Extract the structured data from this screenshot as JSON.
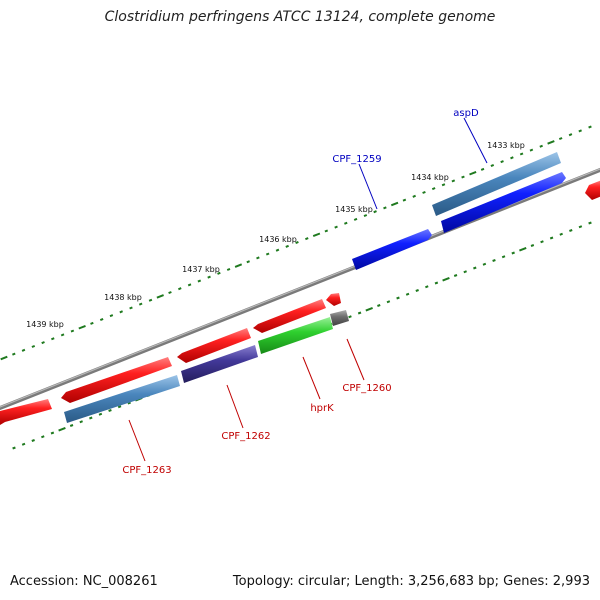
{
  "title": "Clostridium perfringens ATCC 13124, complete genome",
  "footer": {
    "accession": "Accession: NC_008261",
    "stats": "Topology: circular; Length: 3,256,683 bp; Genes: 2,993"
  },
  "colors": {
    "backbone": "#777777",
    "tick": "#1f7a1f",
    "cds_red": "#ee1c1c",
    "cds_blue": "#0a14e6",
    "cds_steel": "#4682b4",
    "cds_purple": "#3d3580",
    "cds_green": "#33c233",
    "cds_gray": "#707070",
    "label_red": "#c00000",
    "label_blue": "#0000c0"
  },
  "outer_scale": {
    "ticks": [
      {
        "label": "1439 kbp"
      },
      {
        "label": "1438 kbp"
      },
      {
        "label": "1437 kbp"
      },
      {
        "label": "1436 kbp"
      },
      {
        "label": "1435 kbp"
      },
      {
        "label": "1434 kbp"
      },
      {
        "label": "1433 kbp"
      }
    ]
  },
  "gene_labels": [
    {
      "name": "aspD",
      "color": "blue"
    },
    {
      "name": "CPF_1259",
      "color": "blue"
    },
    {
      "name": "CPF_1260",
      "color": "red"
    },
    {
      "name": "hprK",
      "color": "red"
    },
    {
      "name": "CPF_1262",
      "color": "red"
    },
    {
      "name": "CPF_1263",
      "color": "red"
    }
  ]
}
